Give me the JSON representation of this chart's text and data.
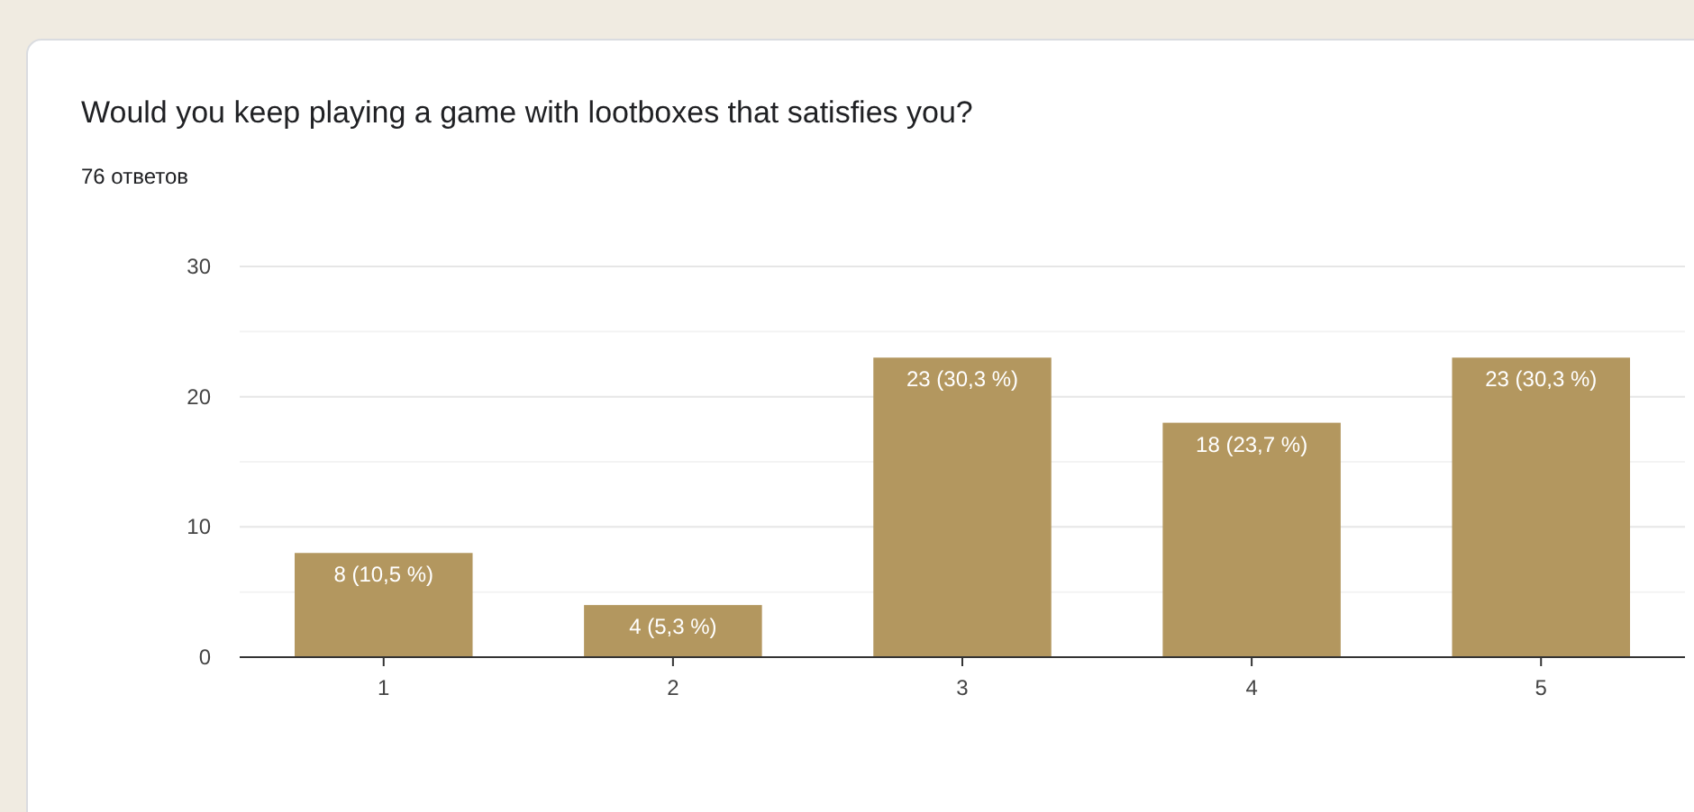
{
  "chart_data": {
    "type": "bar",
    "title": "Would you keep playing a game with lootboxes that satisfies you?",
    "subtitle": "76 ответов",
    "categories": [
      "1",
      "2",
      "3",
      "4",
      "5"
    ],
    "values": [
      8,
      4,
      23,
      18,
      23
    ],
    "value_labels": [
      "8 (10,5 %)",
      "4 (5,3 %)",
      "23 (30,3 %)",
      "18 (23,7 %)",
      "23 (30,3 %)"
    ],
    "color": "#b3975f",
    "ylim": [
      0,
      30
    ],
    "yticks": [
      0,
      {
        "value": 5,
        "label": null
      },
      10,
      {
        "value": 15,
        "label": null
      },
      20,
      {
        "value": 25,
        "label": null
      },
      30
    ],
    "grid": "y"
  }
}
